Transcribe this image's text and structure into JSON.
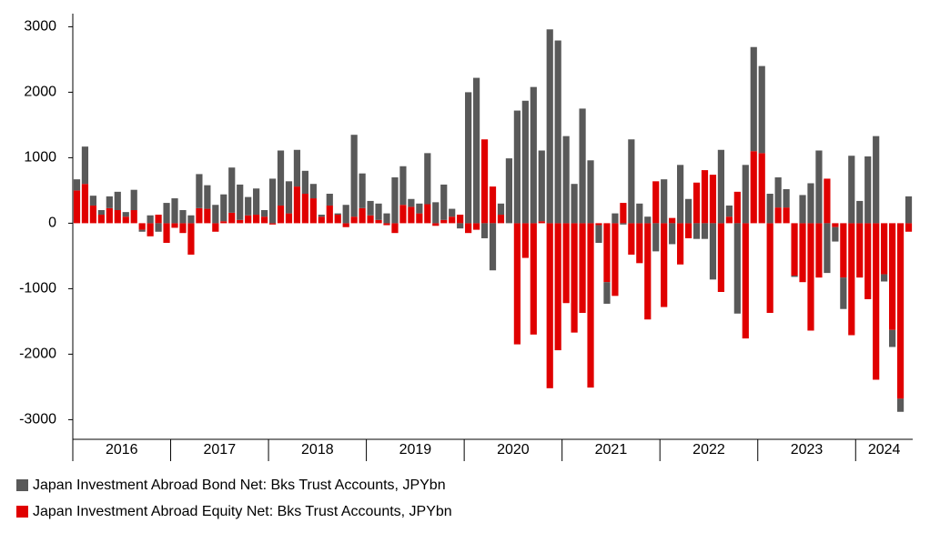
{
  "chart_data": {
    "type": "bar",
    "stacked": true,
    "categories": [
      "2016",
      "2016",
      "2016",
      "2016",
      "2016",
      "2016",
      "2016",
      "2016",
      "2016",
      "2016",
      "2016",
      "2016",
      "2017",
      "2017",
      "2017",
      "2017",
      "2017",
      "2017",
      "2017",
      "2017",
      "2017",
      "2017",
      "2017",
      "2017",
      "2018",
      "2018",
      "2018",
      "2018",
      "2018",
      "2018",
      "2018",
      "2018",
      "2018",
      "2018",
      "2018",
      "2018",
      "2019",
      "2019",
      "2019",
      "2019",
      "2019",
      "2019",
      "2019",
      "2019",
      "2019",
      "2019",
      "2019",
      "2019",
      "2020",
      "2020",
      "2020",
      "2020",
      "2020",
      "2020",
      "2020",
      "2020",
      "2020",
      "2020",
      "2020",
      "2020",
      "2021",
      "2021",
      "2021",
      "2021",
      "2021",
      "2021",
      "2021",
      "2021",
      "2021",
      "2021",
      "2021",
      "2021",
      "2022",
      "2022",
      "2022",
      "2022",
      "2022",
      "2022",
      "2022",
      "2022",
      "2022",
      "2022",
      "2022",
      "2022",
      "2023",
      "2023",
      "2023",
      "2023",
      "2023",
      "2023",
      "2023",
      "2023",
      "2023",
      "2023",
      "2023",
      "2023",
      "2024",
      "2024",
      "2024",
      "2024",
      "2024",
      "2024",
      "2024"
    ],
    "series": [
      {
        "name": "Japan Investment Abroad Bond Net: Bks Trust Accounts, JPYbn",
        "color": "#595959",
        "values": [
          170,
          570,
          150,
          70,
          180,
          280,
          70,
          310,
          -30,
          120,
          -130,
          310,
          380,
          200,
          120,
          520,
          360,
          280,
          410,
          690,
          540,
          280,
          400,
          100,
          680,
          840,
          490,
          560,
          350,
          220,
          30,
          180,
          20,
          280,
          1250,
          530,
          220,
          250,
          150,
          700,
          590,
          120,
          150,
          780,
          320,
          540,
          120,
          -80,
          2000,
          2220,
          -230,
          -720,
          170,
          990,
          1720,
          1870,
          2080,
          1080,
          2960,
          2790,
          1330,
          600,
          1750,
          960,
          -270,
          -330,
          150,
          -20,
          1280,
          300,
          100,
          -430,
          670,
          -320,
          890,
          370,
          -240,
          -240,
          -860,
          1120,
          170,
          -1380,
          890,
          1590,
          1330,
          450,
          460,
          280,
          -20,
          430,
          610,
          1110,
          -760,
          -220,
          -480,
          1030,
          340,
          1020,
          1330,
          -110,
          -260,
          -200,
          410
        ]
      },
      {
        "name": "Japan Investment Abroad Equity Net: Bks Trust Accounts, JPYbn",
        "color": "#e00000",
        "values": [
          500,
          600,
          270,
          130,
          230,
          200,
          100,
          200,
          -100,
          -200,
          130,
          -300,
          -70,
          -150,
          -480,
          230,
          220,
          -130,
          30,
          160,
          50,
          120,
          130,
          100,
          -20,
          270,
          150,
          560,
          450,
          380,
          100,
          270,
          130,
          -60,
          100,
          230,
          120,
          50,
          -30,
          -150,
          280,
          250,
          150,
          290,
          -40,
          50,
          100,
          130,
          -150,
          -100,
          1280,
          560,
          130,
          0,
          -1850,
          -530,
          -1700,
          30,
          -2520,
          -1940,
          -1220,
          -1670,
          -1370,
          -2510,
          -30,
          -900,
          -1110,
          310,
          -480,
          -610,
          -1470,
          640,
          -1280,
          80,
          -630,
          -230,
          620,
          810,
          740,
          -1050,
          100,
          480,
          -1760,
          1100,
          1070,
          -1370,
          240,
          240,
          -800,
          -900,
          -1640,
          -830,
          680,
          -60,
          -830,
          -1710,
          -830,
          -1160,
          -2390,
          -780,
          -1630,
          -2680,
          -130
        ]
      }
    ],
    "ylim": [
      -3300,
      3200
    ],
    "yticks": [
      -3000,
      -2000,
      -1000,
      0,
      1000,
      2000,
      3000
    ],
    "legend": "bottom"
  }
}
